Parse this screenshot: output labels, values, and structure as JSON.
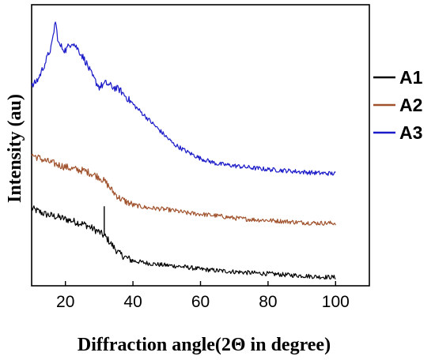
{
  "chart_data": {
    "type": "line",
    "xlabel": "Diffraction angle(2Θ in degree)",
    "ylabel": "Intensity (au)",
    "xlim": [
      10,
      110
    ],
    "ylim": [
      0,
      100
    ],
    "x_ticks": [
      20,
      40,
      60,
      80,
      100
    ],
    "x_tick_labels": [
      "20",
      "40",
      "60",
      "80",
      "100"
    ],
    "y_ticks_shown": false,
    "grid": false,
    "legend_placement": "right",
    "series": [
      {
        "name": "A1",
        "color": "#000000",
        "x": [
          10,
          14,
          18,
          22,
          26,
          30,
          32,
          34,
          36,
          38,
          40,
          44,
          48,
          52,
          56,
          60,
          65,
          70,
          75,
          80,
          85,
          90,
          95,
          100
        ],
        "y": [
          27.5,
          25.5,
          24.4,
          23.1,
          21.7,
          19.1,
          17.3,
          14.2,
          11.4,
          10.0,
          8.9,
          8.1,
          7.5,
          7.1,
          6.6,
          5.9,
          5.4,
          5.0,
          4.6,
          4.3,
          3.9,
          3.6,
          3.2,
          3.0
        ],
        "peaks": [
          {
            "x": 31.5,
            "y": 28.3
          }
        ]
      },
      {
        "name": "A2",
        "color": "#a0522d",
        "x": [
          10,
          14,
          18,
          22,
          26,
          30,
          32,
          34,
          36,
          38,
          40,
          44,
          48,
          52,
          56,
          60,
          65,
          70,
          75,
          80,
          85,
          90,
          95,
          100
        ],
        "y": [
          46.6,
          44.5,
          43.0,
          41.6,
          40.8,
          38.7,
          36.7,
          33.6,
          31.2,
          29.9,
          28.8,
          27.8,
          27.4,
          26.8,
          25.9,
          25.5,
          24.9,
          24.1,
          23.6,
          23.3,
          22.9,
          22.5,
          22.3,
          22.3
        ]
      },
      {
        "name": "A3",
        "color": "#1a1ac8",
        "x": [
          10,
          12,
          14,
          16,
          17,
          18,
          20,
          22,
          24,
          26,
          28,
          30,
          32,
          34,
          36,
          40,
          44,
          48,
          52,
          56,
          60,
          65,
          70,
          75,
          80,
          85,
          90,
          95,
          100
        ],
        "y": [
          70.7,
          73.7,
          79.3,
          85.6,
          94.3,
          85.9,
          83.7,
          86.9,
          83.7,
          79.8,
          74.5,
          70.7,
          72.1,
          70.7,
          69.8,
          64.6,
          59.9,
          55.2,
          50.5,
          47.7,
          45.3,
          43.4,
          42.7,
          42.0,
          41.4,
          41.0,
          40.5,
          40.1,
          39.9
        ]
      }
    ]
  }
}
